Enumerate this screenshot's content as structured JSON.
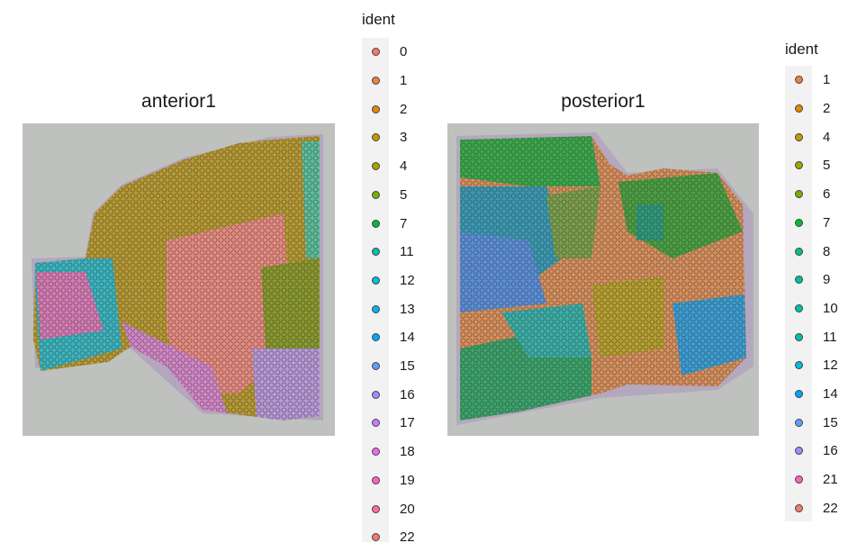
{
  "chart_data": [
    {
      "type": "scatter",
      "title": "anterior1",
      "legend_title": "ident",
      "legend_position": "right",
      "legend_items": [
        {
          "label": "0",
          "color": "#F8766D"
        },
        {
          "label": "1",
          "color": "#EE8044"
        },
        {
          "label": "2",
          "color": "#E38900"
        },
        {
          "label": "3",
          "color": "#C09B00"
        },
        {
          "label": "4",
          "color": "#A3A500"
        },
        {
          "label": "5",
          "color": "#7CAE00"
        },
        {
          "label": "7",
          "color": "#00BA38"
        },
        {
          "label": "11",
          "color": "#00BFAF"
        },
        {
          "label": "12",
          "color": "#00BCD8"
        },
        {
          "label": "13",
          "color": "#00B4EF"
        },
        {
          "label": "14",
          "color": "#00A5FF"
        },
        {
          "label": "15",
          "color": "#619CFF"
        },
        {
          "label": "16",
          "color": "#9590FF"
        },
        {
          "label": "17",
          "color": "#C77CFF"
        },
        {
          "label": "18",
          "color": "#E76BF3"
        },
        {
          "label": "19",
          "color": "#FF62BC"
        },
        {
          "label": "20",
          "color": "#FF6C90"
        },
        {
          "label": "22",
          "color": "#F8766D"
        }
      ]
    },
    {
      "type": "scatter",
      "title": "posterior1",
      "legend_title": "ident",
      "legend_position": "right",
      "legend_items": [
        {
          "label": "1",
          "color": "#EE8044"
        },
        {
          "label": "2",
          "color": "#E38900"
        },
        {
          "label": "4",
          "color": "#C09B00"
        },
        {
          "label": "5",
          "color": "#A3A500"
        },
        {
          "label": "6",
          "color": "#7CAE00"
        },
        {
          "label": "7",
          "color": "#00BA38"
        },
        {
          "label": "8",
          "color": "#00C08B"
        },
        {
          "label": "9",
          "color": "#00BF9E"
        },
        {
          "label": "10",
          "color": "#00C1A9"
        },
        {
          "label": "11",
          "color": "#00BFAF"
        },
        {
          "label": "12",
          "color": "#00BCD8"
        },
        {
          "label": "14",
          "color": "#00A5FF"
        },
        {
          "label": "15",
          "color": "#619CFF"
        },
        {
          "label": "16",
          "color": "#9590FF"
        },
        {
          "label": "21",
          "color": "#FF62BC"
        },
        {
          "label": "22",
          "color": "#F8766D"
        }
      ]
    }
  ]
}
